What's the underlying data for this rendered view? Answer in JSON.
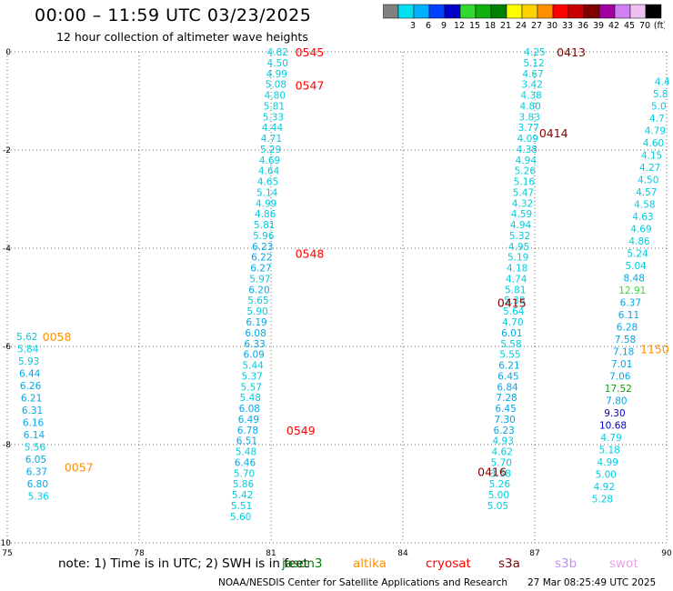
{
  "header": {
    "title": "00:00 – 11:59 UTC 03/23/2025",
    "subtitle": "12 hour collection of altimeter wave heights"
  },
  "colorbar": {
    "bins": [
      {
        "color": "#808080",
        "label": ""
      },
      {
        "color": "#00e0f0",
        "label": "3"
      },
      {
        "color": "#00b0ff",
        "label": "6"
      },
      {
        "color": "#0040ff",
        "label": "9"
      },
      {
        "color": "#0000c8",
        "label": "12"
      },
      {
        "color": "#30d830",
        "label": "15"
      },
      {
        "color": "#10b010",
        "label": "18"
      },
      {
        "color": "#008000",
        "label": "21"
      },
      {
        "color": "#ffff00",
        "label": "24"
      },
      {
        "color": "#ffd000",
        "label": "27"
      },
      {
        "color": "#ff9000",
        "label": "30"
      },
      {
        "color": "#ff0000",
        "label": "33"
      },
      {
        "color": "#c80000",
        "label": "36"
      },
      {
        "color": "#800000",
        "label": "39"
      },
      {
        "color": "#a000a0",
        "label": "42"
      },
      {
        "color": "#d080f0",
        "label": "45"
      },
      {
        "color": "#f0c0f0",
        "label": "70"
      },
      {
        "color": "#000000",
        "label": "(ft)"
      }
    ]
  },
  "footer": {
    "note": "note: 1) Time is in UTC; 2) SWH is in feet",
    "satellites": [
      {
        "name": "jason3",
        "color": "#008000"
      },
      {
        "name": "altika",
        "color": "#ff9000"
      },
      {
        "name": "cryosat",
        "color": "#ff0000"
      },
      {
        "name": "s3a",
        "color": "#800000"
      },
      {
        "name": "s3b",
        "color": "#c090f0"
      },
      {
        "name": "swot",
        "color": "#f0a0f0"
      }
    ],
    "credit": "NOAA/NESDIS Center for Satellite Applications and Research",
    "timestamp": "27 Mar 08:25:49 UTC 2025"
  },
  "chart_data": {
    "type": "scatter",
    "xlim": [
      75,
      90
    ],
    "ylim": [
      -10,
      0
    ],
    "xticks": [
      "75",
      "78",
      "81",
      "84",
      "87",
      "90"
    ],
    "yticks": [
      "0",
      "-2",
      "-4",
      "-6",
      "-8",
      "-10"
    ],
    "grid": true,
    "tracks": [
      {
        "name": "0545",
        "label_color": "#ff0000",
        "label_x": 81.55,
        "label_y": 0.0,
        "points": [
          {
            "x": 81.15,
            "y": 0.0,
            "v": "4.82"
          }
        ]
      },
      {
        "name": "0547",
        "label_color": "#ff0000",
        "label_x": 81.55,
        "label_y": -0.68,
        "points": [
          {
            "x": 81.15,
            "y": -0.22,
            "v": "4.50"
          },
          {
            "x": 81.13,
            "y": -0.44,
            "v": "4.99"
          },
          {
            "x": 81.11,
            "y": -0.66,
            "v": "5.08"
          },
          {
            "x": 81.09,
            "y": -0.88,
            "v": "4.80"
          },
          {
            "x": 81.07,
            "y": -1.1,
            "v": "5.81"
          },
          {
            "x": 81.05,
            "y": -1.32,
            "v": "5.33"
          },
          {
            "x": 81.03,
            "y": -1.54,
            "v": "4.44"
          },
          {
            "x": 81.01,
            "y": -1.76,
            "v": "4.71"
          },
          {
            "x": 80.99,
            "y": -1.98,
            "v": "5.29"
          },
          {
            "x": 80.97,
            "y": -2.2,
            "v": "4.69"
          },
          {
            "x": 80.95,
            "y": -2.42,
            "v": "4.64"
          },
          {
            "x": 80.93,
            "y": -2.64,
            "v": "4.65"
          },
          {
            "x": 80.91,
            "y": -2.86,
            "v": "5.14"
          },
          {
            "x": 80.89,
            "y": -3.08,
            "v": "4.99"
          },
          {
            "x": 80.87,
            "y": -3.3,
            "v": "4.86"
          },
          {
            "x": 80.85,
            "y": -3.52,
            "v": "5.81"
          },
          {
            "x": 80.83,
            "y": -3.74,
            "v": "5.96"
          }
        ]
      },
      {
        "name": "0548",
        "label_color": "#ff0000",
        "label_x": 81.55,
        "label_y": -4.1,
        "points": [
          {
            "x": 80.81,
            "y": -3.96,
            "v": "6.23"
          },
          {
            "x": 80.79,
            "y": -4.18,
            "v": "6.22"
          },
          {
            "x": 80.77,
            "y": -4.4,
            "v": "6.27"
          },
          {
            "x": 80.75,
            "y": -4.62,
            "v": "5.97"
          },
          {
            "x": 80.73,
            "y": -4.84,
            "v": "6.20"
          },
          {
            "x": 80.71,
            "y": -5.06,
            "v": "5.65"
          },
          {
            "x": 80.69,
            "y": -5.28,
            "v": "5.90"
          },
          {
            "x": 80.67,
            "y": -5.5,
            "v": "6.19"
          },
          {
            "x": 80.65,
            "y": -5.72,
            "v": "6.08"
          },
          {
            "x": 80.63,
            "y": -5.94,
            "v": "6.33"
          },
          {
            "x": 80.61,
            "y": -6.16,
            "v": "6.09"
          },
          {
            "x": 80.59,
            "y": -6.38,
            "v": "5.44"
          },
          {
            "x": 80.57,
            "y": -6.6,
            "v": "5.37"
          },
          {
            "x": 80.55,
            "y": -6.82,
            "v": "5.57"
          },
          {
            "x": 80.53,
            "y": -7.04,
            "v": "5.48"
          },
          {
            "x": 80.51,
            "y": -7.26,
            "v": "6.08"
          },
          {
            "x": 80.49,
            "y": -7.48,
            "v": "6.49"
          }
        ]
      },
      {
        "name": "0549",
        "label_color": "#ff0000",
        "label_x": 81.35,
        "label_y": -7.7,
        "points": [
          {
            "x": 80.47,
            "y": -7.7,
            "v": "6.78"
          },
          {
            "x": 80.45,
            "y": -7.92,
            "v": "6.51"
          },
          {
            "x": 80.43,
            "y": -8.14,
            "v": "5.48"
          },
          {
            "x": 80.41,
            "y": -8.36,
            "v": "6.46"
          },
          {
            "x": 80.39,
            "y": -8.58,
            "v": "5.70"
          },
          {
            "x": 80.37,
            "y": -8.8,
            "v": "5.86"
          },
          {
            "x": 80.35,
            "y": -9.02,
            "v": "5.42"
          },
          {
            "x": 80.33,
            "y": -9.24,
            "v": "5.51"
          },
          {
            "x": 80.31,
            "y": -9.46,
            "v": "5.60"
          }
        ]
      },
      {
        "name": "0058",
        "label_color": "#ff9000",
        "label_x": 75.8,
        "label_y": -5.8,
        "points": [
          {
            "x": 75.45,
            "y": -5.8,
            "v": "5.62"
          },
          {
            "x": 75.47,
            "y": -6.05,
            "v": "5.84"
          },
          {
            "x": 75.49,
            "y": -6.3,
            "v": "5.93"
          },
          {
            "x": 75.51,
            "y": -6.55,
            "v": "6.44"
          },
          {
            "x": 75.53,
            "y": -6.8,
            "v": "6.26"
          },
          {
            "x": 75.55,
            "y": -7.05,
            "v": "6.21"
          }
        ]
      },
      {
        "name": "0057",
        "label_color": "#ff9000",
        "label_x": 76.3,
        "label_y": -8.45,
        "points": [
          {
            "x": 75.57,
            "y": -7.3,
            "v": "6.31"
          },
          {
            "x": 75.59,
            "y": -7.55,
            "v": "6.16"
          },
          {
            "x": 75.61,
            "y": -7.8,
            "v": "6.14"
          },
          {
            "x": 75.63,
            "y": -8.05,
            "v": "5.56"
          },
          {
            "x": 75.65,
            "y": -8.3,
            "v": "6.05"
          },
          {
            "x": 75.67,
            "y": -8.55,
            "v": "6.37"
          },
          {
            "x": 75.69,
            "y": -8.8,
            "v": "6.80"
          },
          {
            "x": 75.71,
            "y": -9.05,
            "v": "5.36"
          }
        ]
      },
      {
        "name": "0413",
        "label_color": "#800000",
        "label_x": 87.5,
        "label_y": 0.0,
        "points": [
          {
            "x": 87.0,
            "y": 0.0,
            "v": "4.25"
          },
          {
            "x": 86.98,
            "y": -0.22,
            "v": "5.12"
          },
          {
            "x": 86.96,
            "y": -0.44,
            "v": "4.67"
          },
          {
            "x": 86.94,
            "y": -0.66,
            "v": "3.42"
          },
          {
            "x": 86.92,
            "y": -0.88,
            "v": "4.38"
          },
          {
            "x": 86.9,
            "y": -1.1,
            "v": "4.80"
          },
          {
            "x": 86.88,
            "y": -1.32,
            "v": "3.83"
          }
        ]
      },
      {
        "name": "0414",
        "label_color": "#800000",
        "label_x": 87.1,
        "label_y": -1.65,
        "points": [
          {
            "x": 86.86,
            "y": -1.54,
            "v": "3.77"
          },
          {
            "x": 86.84,
            "y": -1.76,
            "v": "4.09"
          },
          {
            "x": 86.82,
            "y": -1.98,
            "v": "4.38"
          },
          {
            "x": 86.8,
            "y": -2.2,
            "v": "4.94"
          },
          {
            "x": 86.78,
            "y": -2.42,
            "v": "5.26"
          },
          {
            "x": 86.76,
            "y": -2.64,
            "v": "5.16"
          },
          {
            "x": 86.74,
            "y": -2.86,
            "v": "5.47"
          },
          {
            "x": 86.72,
            "y": -3.08,
            "v": "4.32"
          },
          {
            "x": 86.7,
            "y": -3.3,
            "v": "4.59"
          },
          {
            "x": 86.68,
            "y": -3.52,
            "v": "4.94"
          },
          {
            "x": 86.66,
            "y": -3.74,
            "v": "5.32"
          },
          {
            "x": 86.64,
            "y": -3.96,
            "v": "4.95"
          },
          {
            "x": 86.62,
            "y": -4.18,
            "v": "5.19"
          },
          {
            "x": 86.6,
            "y": -4.4,
            "v": "4.18"
          },
          {
            "x": 86.58,
            "y": -4.62,
            "v": "4.74"
          }
        ]
      },
      {
        "name": "0415",
        "label_color": "#800000",
        "label_x": 86.15,
        "label_y": -5.1,
        "points": [
          {
            "x": 86.56,
            "y": -4.84,
            "v": "5.81"
          },
          {
            "x": 86.54,
            "y": -5.06,
            "v": "5.38"
          },
          {
            "x": 86.52,
            "y": -5.28,
            "v": "5.64"
          },
          {
            "x": 86.5,
            "y": -5.5,
            "v": "4.70"
          },
          {
            "x": 86.48,
            "y": -5.72,
            "v": "6.01"
          },
          {
            "x": 86.46,
            "y": -5.94,
            "v": "5.58"
          },
          {
            "x": 86.44,
            "y": -6.16,
            "v": "5.55"
          },
          {
            "x": 86.42,
            "y": -6.38,
            "v": "6.21"
          },
          {
            "x": 86.4,
            "y": -6.6,
            "v": "6.45"
          },
          {
            "x": 86.38,
            "y": -6.82,
            "v": "6.84"
          },
          {
            "x": 86.36,
            "y": -7.04,
            "v": "7.28"
          },
          {
            "x": 86.34,
            "y": -7.26,
            "v": "6.45"
          },
          {
            "x": 86.32,
            "y": -7.48,
            "v": "7.30"
          }
        ]
      },
      {
        "name": "0416",
        "label_color": "#800000",
        "label_x": 85.7,
        "label_y": -8.55,
        "points": [
          {
            "x": 86.3,
            "y": -7.7,
            "v": "6.23"
          },
          {
            "x": 86.28,
            "y": -7.92,
            "v": "4.93"
          },
          {
            "x": 86.26,
            "y": -8.14,
            "v": "4.62"
          },
          {
            "x": 86.24,
            "y": -8.36,
            "v": "5.70"
          },
          {
            "x": 86.22,
            "y": -8.58,
            "v": "3.58"
          },
          {
            "x": 86.2,
            "y": -8.8,
            "v": "5.26"
          },
          {
            "x": 86.18,
            "y": -9.02,
            "v": "5.00"
          },
          {
            "x": 86.16,
            "y": -9.24,
            "v": "5.05"
          }
        ]
      },
      {
        "name": "1150",
        "label_color": "#ff9000",
        "label_x": 89.4,
        "label_y": -6.05,
        "points": [
          {
            "x": 89.9,
            "y": -0.6,
            "v": "4.4"
          },
          {
            "x": 89.86,
            "y": -0.85,
            "v": "5.8"
          },
          {
            "x": 89.82,
            "y": -1.1,
            "v": "5.0"
          },
          {
            "x": 89.78,
            "y": -1.35,
            "v": "4.7"
          },
          {
            "x": 89.74,
            "y": -1.6,
            "v": "4.79"
          },
          {
            "x": 89.7,
            "y": -1.85,
            "v": "4.60"
          },
          {
            "x": 89.66,
            "y": -2.1,
            "v": "4.15"
          },
          {
            "x": 89.62,
            "y": -2.35,
            "v": "4.27"
          },
          {
            "x": 89.58,
            "y": -2.6,
            "v": "4.50"
          },
          {
            "x": 89.54,
            "y": -2.85,
            "v": "4.57"
          },
          {
            "x": 89.5,
            "y": -3.1,
            "v": "4.58"
          },
          {
            "x": 89.46,
            "y": -3.35,
            "v": "4.63"
          },
          {
            "x": 89.42,
            "y": -3.6,
            "v": "4.69"
          },
          {
            "x": 89.38,
            "y": -3.85,
            "v": "4.86"
          },
          {
            "x": 89.34,
            "y": -4.1,
            "v": "5.24"
          },
          {
            "x": 89.3,
            "y": -4.35,
            "v": "5.04"
          },
          {
            "x": 89.26,
            "y": -4.6,
            "v": "8.48"
          },
          {
            "x": 89.22,
            "y": -4.85,
            "v": "12.91"
          },
          {
            "x": 89.18,
            "y": -5.1,
            "v": "6.37"
          },
          {
            "x": 89.14,
            "y": -5.35,
            "v": "6.11"
          },
          {
            "x": 89.1,
            "y": -5.6,
            "v": "6.28"
          },
          {
            "x": 89.06,
            "y": -5.85,
            "v": "7.58"
          },
          {
            "x": 89.02,
            "y": -6.1,
            "v": "7.18"
          },
          {
            "x": 88.98,
            "y": -6.35,
            "v": "7.01"
          },
          {
            "x": 88.94,
            "y": -6.6,
            "v": "7.06"
          },
          {
            "x": 88.9,
            "y": -6.85,
            "v": "17.52"
          },
          {
            "x": 88.86,
            "y": -7.1,
            "v": "7.80"
          },
          {
            "x": 88.82,
            "y": -7.35,
            "v": "9.30"
          },
          {
            "x": 88.78,
            "y": -7.6,
            "v": "10.68"
          },
          {
            "x": 88.74,
            "y": -7.85,
            "v": "4.79"
          },
          {
            "x": 88.7,
            "y": -8.1,
            "v": "5.18"
          },
          {
            "x": 88.66,
            "y": -8.35,
            "v": "4.99"
          },
          {
            "x": 88.62,
            "y": -8.6,
            "v": "5.00"
          },
          {
            "x": 88.58,
            "y": -8.85,
            "v": "4.92"
          },
          {
            "x": 88.54,
            "y": -9.1,
            "v": "5.28"
          }
        ]
      }
    ]
  }
}
